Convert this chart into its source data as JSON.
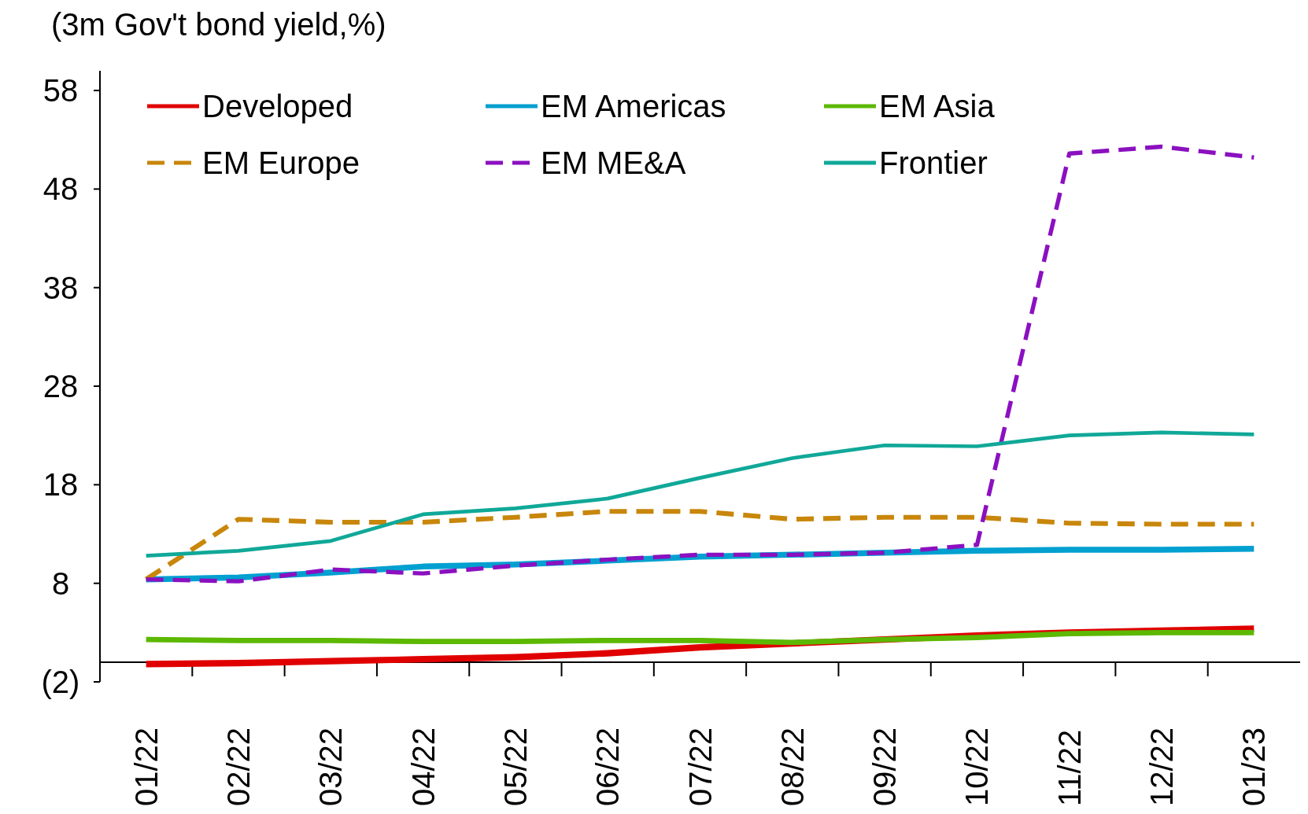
{
  "chart_data": {
    "type": "line",
    "ylabel": "(3m Gov't bond yield,%)",
    "categories": [
      "01/22",
      "02/22",
      "03/22",
      "04/22",
      "05/22",
      "06/22",
      "07/22",
      "08/22",
      "09/22",
      "10/22",
      "11/22",
      "12/22",
      "01/23"
    ],
    "ylim": [
      -2,
      60
    ],
    "yticks": [
      {
        "value": -2,
        "label": "(2)"
      },
      8,
      18,
      28,
      38,
      48,
      58
    ],
    "grid": false,
    "legend": "top",
    "marker": "none",
    "series": [
      {
        "name": "Developed",
        "color": "#e00000",
        "line_style": "solid",
        "values": [
          -0.2,
          -0.1,
          0.1,
          0.3,
          0.5,
          0.9,
          1.5,
          1.9,
          2.3,
          2.7,
          3.0,
          3.2,
          3.4
        ]
      },
      {
        "name": "EM Americas",
        "color": "#00a0d0",
        "line_style": "solid",
        "values": [
          8.4,
          8.6,
          9.1,
          9.7,
          9.9,
          10.3,
          10.7,
          10.9,
          11.1,
          11.3,
          11.4,
          11.4,
          11.5
        ]
      },
      {
        "name": "EM Asia",
        "color": "#5cb800",
        "line_style": "solid",
        "values": [
          2.3,
          2.2,
          2.2,
          2.1,
          2.1,
          2.2,
          2.2,
          2.0,
          2.3,
          2.5,
          2.9,
          3.0,
          3.0
        ]
      },
      {
        "name": "EM Europe",
        "color": "#c8860a",
        "line_style": "dashed",
        "values": [
          8.4,
          14.5,
          14.2,
          14.2,
          14.7,
          15.3,
          15.3,
          14.5,
          14.7,
          14.7,
          14.1,
          14.0,
          14.0
        ]
      },
      {
        "name": "EM ME&A",
        "color": "#8b10c0",
        "line_style": "dashed",
        "values": [
          8.4,
          8.2,
          9.4,
          9.0,
          9.8,
          10.4,
          10.9,
          10.9,
          11.1,
          11.9,
          51.6,
          52.3,
          51.2
        ]
      },
      {
        "name": "Frontier",
        "color": "#10a898",
        "line_style": "solid",
        "values": [
          10.8,
          11.3,
          12.3,
          15.0,
          15.6,
          16.6,
          18.7,
          20.7,
          22.0,
          21.9,
          23.0,
          23.3,
          23.1
        ]
      }
    ]
  }
}
